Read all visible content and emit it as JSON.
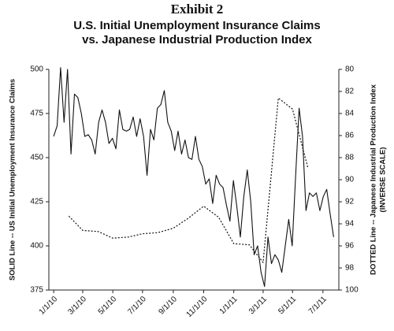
{
  "chart_data": {
    "type": "line",
    "title": "Exhibit 2",
    "subtitle": [
      "U.S. Initial Unemployment Insurance Claims",
      "vs. Japanese Industrial Production Index"
    ],
    "ylabel": "SOLID Line -- US Initial Unemployment Insurance Claims",
    "y2label": [
      "DOTTED Line -- Japanese Industrial Production Index",
      "(INVERSE SCALE)"
    ],
    "xlim": [
      -1.4,
      82.5
    ],
    "xticks": [
      {
        "value": 0,
        "label": "1/1/10"
      },
      {
        "value": 8.4,
        "label": "3/1/10"
      },
      {
        "value": 17.1,
        "label": "5/1/10"
      },
      {
        "value": 25.7,
        "label": "7/1/10"
      },
      {
        "value": 34.6,
        "label": "9/1/10"
      },
      {
        "value": 43.4,
        "label": "11/1/10"
      },
      {
        "value": 52.1,
        "label": "1/1/11"
      },
      {
        "value": 60.6,
        "label": "3/1/11"
      },
      {
        "value": 69.1,
        "label": "5/1/11"
      },
      {
        "value": 77.9,
        "label": "7/1/11"
      }
    ],
    "ylim": [
      375,
      500
    ],
    "yticks": [
      375,
      400,
      425,
      450,
      475,
      500
    ],
    "y2lim": [
      100,
      80
    ],
    "y2ticks": [
      80,
      82,
      84,
      86,
      88,
      90,
      92,
      94,
      96,
      98,
      100
    ],
    "series": [
      {
        "color": "#111111",
        "style": "solid",
        "axis": "y",
        "x": [
          0,
          1,
          2,
          3,
          4,
          5,
          6,
          7,
          8,
          9,
          10,
          11,
          12,
          13,
          14,
          15,
          16,
          17,
          18,
          19,
          20,
          21,
          22,
          23,
          24,
          25,
          26,
          27,
          28,
          29,
          30,
          31,
          32,
          33,
          34,
          35,
          36,
          37,
          38,
          39,
          40,
          41,
          42,
          43,
          44,
          45,
          46,
          47,
          48,
          49,
          50,
          51,
          52,
          53,
          54,
          55,
          56,
          57,
          58,
          59,
          60,
          61,
          62,
          63,
          64,
          65,
          66,
          67,
          68,
          69,
          70,
          71,
          72,
          73,
          74,
          75,
          76,
          77,
          78,
          79,
          80,
          81
        ],
        "values": [
          462,
          468,
          501,
          470,
          500,
          452,
          486,
          484,
          475,
          462,
          463,
          460,
          452,
          470,
          477,
          470,
          458,
          461,
          455,
          477,
          466,
          465,
          466,
          473,
          462,
          472,
          462,
          440,
          466,
          460,
          478,
          480,
          488,
          470,
          465,
          454,
          465,
          452,
          460,
          450,
          449,
          462,
          449,
          445,
          435,
          438,
          424,
          440,
          435,
          433,
          423,
          414,
          437,
          422,
          405,
          428,
          443,
          425,
          395,
          400,
          385,
          377,
          405,
          390,
          395,
          392,
          385,
          400,
          415,
          400,
          440,
          478,
          462,
          420,
          430,
          428,
          430,
          420,
          428,
          432,
          418,
          405
        ]
      },
      {
        "color": "#111111",
        "style": "dotted",
        "axis": "y2",
        "x": [
          4.4,
          8.4,
          12.9,
          17.1,
          21.6,
          25.7,
          30.1,
          34.6,
          38.9,
          43.4,
          47.7,
          52.1,
          56.6,
          60.6,
          65,
          69.1,
          73.6
        ],
        "values": [
          93.3,
          94.6,
          94.7,
          95.3,
          95.2,
          94.9,
          94.8,
          94.4,
          93.5,
          92.4,
          93.4,
          95.8,
          95.9,
          97.5,
          82.6,
          83.6,
          89.0
        ]
      }
    ]
  }
}
